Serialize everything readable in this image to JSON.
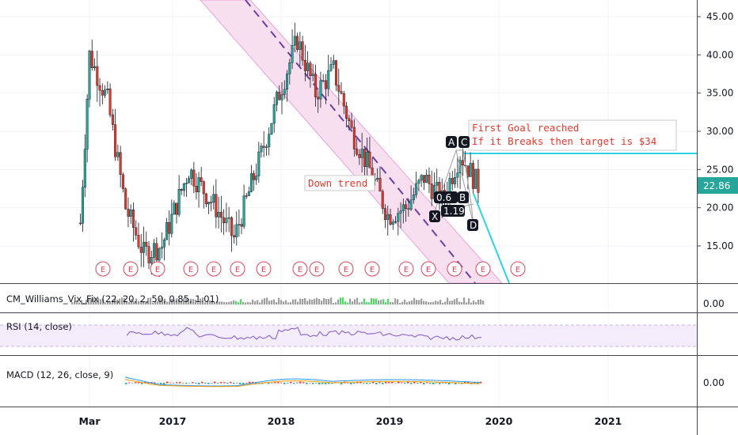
{
  "price_axis": {
    "ticks": [
      "45.00",
      "40.00",
      "35.00",
      "30.00",
      "25.00",
      "20.00",
      "15.00"
    ],
    "current_price": "22.86",
    "current_price_color": "#26a69a"
  },
  "time_axis": {
    "labels": [
      "Mar",
      "2017",
      "2018",
      "2019",
      "2020",
      "2021"
    ]
  },
  "annotations": {
    "down_trend": "Down trend",
    "goal_line1": "First Goal reached",
    "goal_line2": "If it Breaks then target is $34"
  },
  "pattern_points": {
    "a": "A",
    "c": "C",
    "b": "B",
    "x": "X",
    "d": "D",
    "ratio_xb": "0.6",
    "ratio_bd": "1.19"
  },
  "earnings_marker": "E",
  "indicators": {
    "vix_label": "CM_Williams_Vix_Fix (22, 20, 2, 50, 0.85, 1.01)",
    "vix_axis": "0.00",
    "rsi_label": "RSI (14, close)",
    "macd_label": "MACD (12, 26, close, 9)",
    "macd_axis": "0.00"
  },
  "colors": {
    "up": "#26a69a",
    "down": "#e03a2e",
    "channel_fill": "#f7dff0",
    "channel_border": "#e8a3d8",
    "target_line": "#2ad4e6",
    "rsi": "#7e57c2",
    "earnings": "#e0435a"
  },
  "chart_data": {
    "type": "candlestick",
    "y_range": [
      11,
      47
    ],
    "x_range": [
      "2016-01",
      "2021-10"
    ],
    "weekly_close_approx": [
      {
        "x": "2016-02",
        "y": 18
      },
      {
        "x": "2016-03",
        "y": 40
      },
      {
        "x": "2016-05",
        "y": 34
      },
      {
        "x": "2016-07",
        "y": 20
      },
      {
        "x": "2016-09",
        "y": 14
      },
      {
        "x": "2016-11",
        "y": 15
      },
      {
        "x": "2017-02",
        "y": 25
      },
      {
        "x": "2017-05",
        "y": 20
      },
      {
        "x": "2017-07",
        "y": 16
      },
      {
        "x": "2017-10",
        "y": 27
      },
      {
        "x": "2017-12",
        "y": 35
      },
      {
        "x": "2018-02",
        "y": 42
      },
      {
        "x": "2018-04",
        "y": 35
      },
      {
        "x": "2018-06",
        "y": 38
      },
      {
        "x": "2018-08",
        "y": 30
      },
      {
        "x": "2018-10",
        "y": 25
      },
      {
        "x": "2018-12",
        "y": 19
      },
      {
        "x": "2019-02",
        "y": 20
      },
      {
        "x": "2019-04",
        "y": 24
      },
      {
        "x": "2019-06",
        "y": 21
      },
      {
        "x": "2019-08",
        "y": 27
      },
      {
        "x": "2019-10",
        "y": 22.86
      }
    ]
  }
}
